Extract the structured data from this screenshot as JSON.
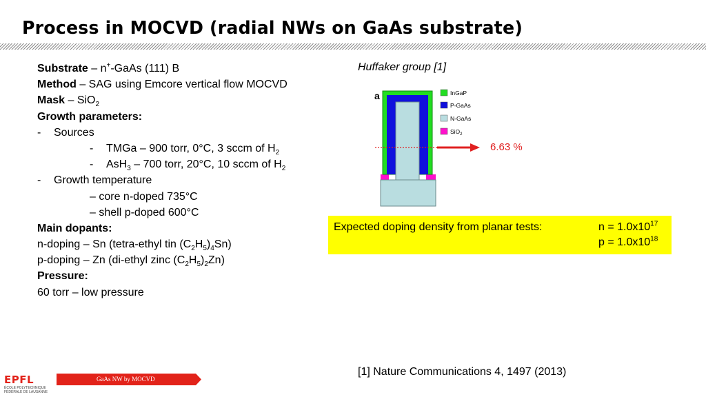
{
  "slide": {
    "title": "Process in MOCVD (radial NWs on GaAs substrate)"
  },
  "left": {
    "substrate": {
      "label": "Substrate",
      "pre": " – n",
      "sup": "+",
      "post": "-GaAs (111) B"
    },
    "method": {
      "label": "Method",
      "text": " – SAG using Emcore vertical flow MOCVD"
    },
    "mask": {
      "label": "Mask",
      "pre": " – SiO",
      "sub": "2"
    },
    "growth_params": "Growth parameters:",
    "sources_dash": "-",
    "sources": "Sources",
    "tmga_dash": "-",
    "tmga": {
      "pre": "TMGa – 900 torr, 0°C, 3 sccm of H",
      "sub": "2"
    },
    "ash3_dash": "-",
    "ash3": {
      "pre": "AsH",
      "sub1": "3",
      "mid": " – 700 torr, 20°C, 10 sccm of H",
      "sub2": "2"
    },
    "temp_dash": "-",
    "growth_temp": "Growth temperature",
    "core": "– core n-doped 735°C",
    "shell": "– shell p-doped 600°C",
    "dopants": "Main dopants:",
    "n_doping": {
      "pre": "n-doping – Sn (tetra-ethyl tin (C",
      "sub1": "2",
      "mid1": "H",
      "sub2": "5",
      "mid2": ")",
      "sub3": "4",
      "post": "Sn)"
    },
    "p_doping": {
      "pre": "p-doping – Zn (di-ethyl zinc (C",
      "sub1": "2",
      "mid1": "H",
      "sub2": "5",
      "mid2": ")",
      "sub3": "2",
      "post": "Zn)"
    },
    "pressure_label": "Pressure:",
    "pressure": "60 torr – low pressure"
  },
  "figure": {
    "caption": "Huffaker group [1]",
    "panel_label": "a",
    "legend": [
      {
        "label": "InGaP",
        "color": "#22dd22"
      },
      {
        "label": "P-GaAs",
        "color": "#1111dd"
      },
      {
        "label": "N-GaAs",
        "color": "#b9dde0"
      },
      {
        "label": "SiO",
        "sub": "2",
        "color": "#ff11cc"
      }
    ],
    "percent": "6.63 %",
    "percent_color": "#e02020"
  },
  "doping_box": {
    "label": "Expected doping density from planar tests:",
    "n_pre": "n = 1.0x10",
    "n_exp": "17",
    "p_pre": "p = 1.0x10",
    "p_exp": "18",
    "color": "#ffff00"
  },
  "reference": "[1] Nature Communications 4, 1497 (2013)",
  "footer": {
    "text": "GaAs NW by MOCVD",
    "logo_text": "EPFL",
    "logo_sub1": "ÉCOLE POLYTECHNIQUE",
    "logo_sub2": "FÉDÉRALE DE LAUSANNE",
    "color": "#e2231a"
  }
}
